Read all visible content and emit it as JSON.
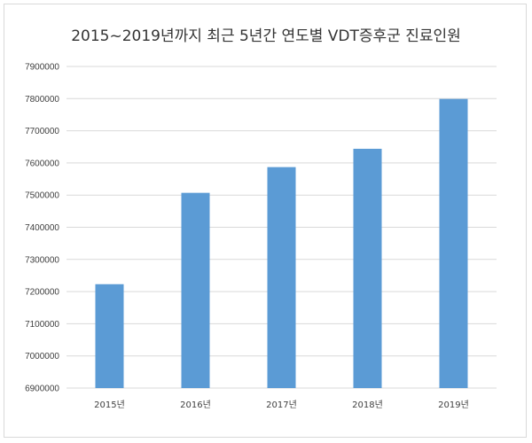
{
  "chart_data": {
    "type": "bar",
    "title": "2015~2019년까지 최근 5년간 연도별 VDT증후군 진료인원",
    "xlabel": "",
    "ylabel": "",
    "categories": [
      "2015년",
      "2016년",
      "2017년",
      "2018년",
      "2019년"
    ],
    "values": [
      7223000,
      7507000,
      7587000,
      7644000,
      7799000
    ],
    "ylim": [
      6900000,
      7900000
    ],
    "yticks": [
      "6900000",
      "7000000",
      "7100000",
      "7200000",
      "7300000",
      "7400000",
      "7500000",
      "7600000",
      "7700000",
      "7800000",
      "7900000"
    ],
    "grid": true,
    "legend": "none",
    "bar_color": "#5b9bd5",
    "grid_color": "#d9d9d9"
  }
}
